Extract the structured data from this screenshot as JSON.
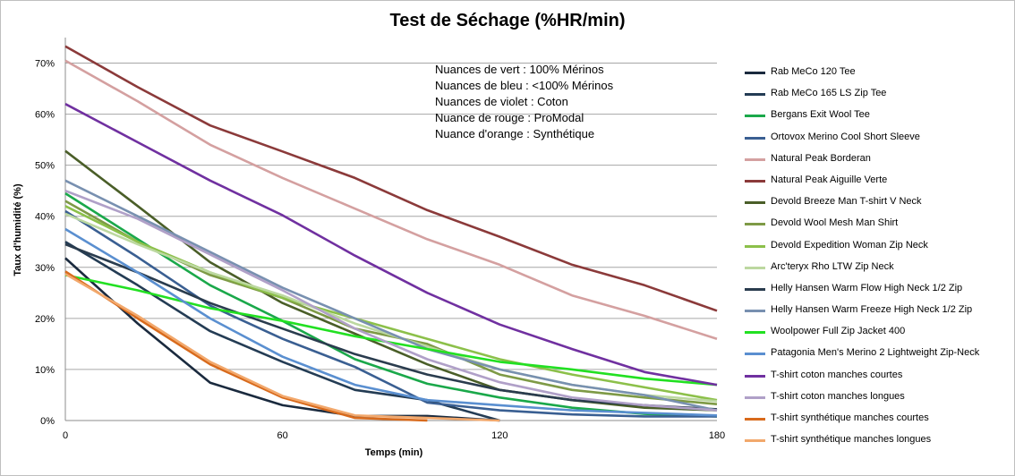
{
  "chart_data": {
    "type": "line",
    "title": "Test de Séchage (%HR/min)",
    "xlabel": "Temps (min)",
    "ylabel": "Taux d'humidité (%)",
    "xlim": [
      0,
      180
    ],
    "ylim": [
      0,
      0.75
    ],
    "xticks": [
      0,
      60,
      120,
      180
    ],
    "yticks": [
      {
        "value": 0,
        "label": "0%"
      },
      {
        "value": 0.1,
        "label": "10%"
      },
      {
        "value": 0.2,
        "label": "20%"
      },
      {
        "value": 0.3,
        "label": "30%"
      },
      {
        "value": 0.4,
        "label": "40%"
      },
      {
        "value": 0.5,
        "label": "50%"
      },
      {
        "value": 0.6,
        "label": "60%"
      },
      {
        "value": 0.7,
        "label": "70%"
      }
    ],
    "grid": "horizontal",
    "legend_position": "right",
    "annotation": [
      "Nuances de vert : 100% Mérinos",
      "Nuances de bleu : <100%  Mérinos",
      "Nuances de violet : Coton",
      "Nuance de rouge : ProModal",
      "Nuance d'orange : Synthétique"
    ],
    "x": [
      0,
      20,
      40,
      60,
      80,
      100,
      120,
      140,
      160,
      180
    ],
    "series": [
      {
        "name": "Rab MeCo 120 Tee",
        "color": "#1a2a3e",
        "values": [
          0.318,
          0.19,
          0.074,
          0.03,
          0.009,
          0.009,
          0.0,
          null,
          null,
          null
        ]
      },
      {
        "name": "Rab MeCo 165 LS Zip Tee",
        "color": "#243c54",
        "values": [
          0.35,
          0.265,
          0.175,
          0.115,
          0.06,
          0.04,
          0.0,
          null,
          null,
          null
        ]
      },
      {
        "name": "Bergans Exit Wool Tee",
        "color": "#1aa84a",
        "values": [
          0.445,
          0.355,
          0.265,
          0.195,
          0.12,
          0.072,
          0.045,
          0.025,
          0.013,
          0.008
        ]
      },
      {
        "name": "Ortovox Merino Cool Short Sleeve",
        "color": "#3a5f92",
        "values": [
          0.41,
          0.32,
          0.225,
          0.16,
          0.105,
          0.035,
          0.02,
          0.012,
          0.008,
          0.008
        ]
      },
      {
        "name": "Natural Peak Borderan",
        "color": "#d4a0a0",
        "values": [
          0.705,
          0.625,
          0.54,
          0.475,
          0.415,
          0.355,
          0.305,
          0.245,
          0.205,
          0.16
        ]
      },
      {
        "name": "Natural Peak Aiguille Verte",
        "color": "#8b3a3a",
        "values": [
          0.733,
          0.653,
          0.578,
          0.527,
          0.475,
          0.412,
          0.36,
          0.305,
          0.265,
          0.215
        ]
      },
      {
        "name": "Devold Breeze Man T-shirt V Neck",
        "color": "#4a5e28",
        "values": [
          0.528,
          0.42,
          0.31,
          0.23,
          0.17,
          0.11,
          0.06,
          0.04,
          0.025,
          0.02
        ]
      },
      {
        "name": "Devold Wool Mesh Man Shirt",
        "color": "#7e9a46",
        "values": [
          0.43,
          0.35,
          0.285,
          0.24,
          0.18,
          0.15,
          0.09,
          0.06,
          0.045,
          0.032
        ]
      },
      {
        "name": "Devold Expedition Woman Zip Neck",
        "color": "#8cc04a",
        "values": [
          0.42,
          0.35,
          0.29,
          0.24,
          0.2,
          0.16,
          0.12,
          0.09,
          0.065,
          0.04
        ]
      },
      {
        "name": "Arc'teryx Rho LTW Zip Neck",
        "color": "#bcd8a0",
        "values": [
          0.405,
          0.345,
          0.29,
          0.245,
          0.19,
          0.145,
          0.1,
          0.07,
          0.05,
          0.038
        ]
      },
      {
        "name": "Helly Hansen Warm Flow High Neck 1/2 Zip",
        "color": "#2a3c4e",
        "values": [
          0.345,
          0.29,
          0.23,
          0.18,
          0.13,
          0.09,
          0.06,
          0.04,
          0.03,
          0.022
        ]
      },
      {
        "name": "Helly Hansen Warm Freeze High Neck 1/2 Zip",
        "color": "#7890b0",
        "values": [
          0.47,
          0.4,
          0.33,
          0.26,
          0.2,
          0.14,
          0.1,
          0.07,
          0.05,
          0.02
        ]
      },
      {
        "name": "Woolpower Full Zip Jacket 400",
        "color": "#22e022",
        "values": [
          0.285,
          0.255,
          0.22,
          0.195,
          0.165,
          0.14,
          0.115,
          0.1,
          0.082,
          0.07
        ]
      },
      {
        "name": "Patagonia Men's Merino 2 Lightweight Zip-Neck",
        "color": "#5a8fd0",
        "values": [
          0.375,
          0.29,
          0.2,
          0.125,
          0.07,
          0.04,
          0.03,
          0.02,
          0.015,
          0.01
        ]
      },
      {
        "name": "T-shirt coton manches courtes",
        "color": "#7030a0",
        "values": [
          0.62,
          0.545,
          0.47,
          0.402,
          0.323,
          0.25,
          0.188,
          0.14,
          0.095,
          0.07
        ]
      },
      {
        "name": "T-shirt coton manches longues",
        "color": "#b0a0c8",
        "values": [
          0.45,
          0.395,
          0.325,
          0.255,
          0.18,
          0.12,
          0.075,
          0.045,
          0.03,
          0.02
        ]
      },
      {
        "name": "T-shirt synthétique manches courtes",
        "color": "#d86a1c",
        "values": [
          0.292,
          0.2,
          0.11,
          0.045,
          0.005,
          0.0,
          null,
          null,
          null,
          null
        ]
      },
      {
        "name": "T-shirt synthétique manches longues",
        "color": "#f2a86c",
        "values": [
          0.287,
          0.205,
          0.115,
          0.048,
          0.01,
          0.005,
          0.0,
          null,
          null,
          null
        ]
      }
    ]
  }
}
